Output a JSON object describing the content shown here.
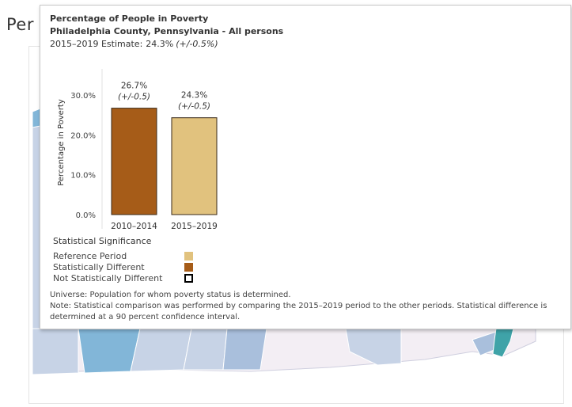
{
  "page": {
    "title": "Per"
  },
  "tooltip": {
    "title": "Percentage of People in Poverty",
    "subtitle": "Philadelphia County, Pennsylvania - All persons",
    "estimate_label": "2015–2019 Estimate:",
    "estimate_value": "24.3%",
    "estimate_moe": "(+/-0.5%)"
  },
  "chart_data": {
    "type": "bar",
    "title": "",
    "ylabel": "Percentage in Poverty",
    "xlabel": "",
    "categories": [
      "2010–2014",
      "2015–2019"
    ],
    "values": [
      26.7,
      24.3
    ],
    "value_labels": [
      "26.7%",
      "24.3%"
    ],
    "moe_labels": [
      "(+/-0.5)",
      "(+/-0.5)"
    ],
    "colors": [
      "#a65c18",
      "#e1c27e"
    ],
    "ylim": [
      0,
      30.0
    ],
    "yticks": [
      0,
      10,
      20,
      30
    ],
    "ytick_labels": [
      "0.0%",
      "10.0%",
      "20.0%",
      "30.0%"
    ],
    "grid": false
  },
  "legend": {
    "title": "Statistical Significance",
    "items": [
      {
        "label": "Reference Period",
        "color": "#e1c27e",
        "style": "filled"
      },
      {
        "label": "Statistically Different",
        "color": "#a65c18",
        "style": "filled"
      },
      {
        "label": "Not Statistically Different",
        "color": "#000000",
        "style": "outline"
      }
    ]
  },
  "notes": {
    "universe": "Universe: Population for whom poverty status is determined.",
    "note_line1": "Note: Statistical comparison was performed by comparing the 2015–2019 period to the other periods. Statistical difference is",
    "note_line2": "determined at a 90 percent confidence interval."
  },
  "map": {
    "colors": {
      "light": "#c7d3e6",
      "mid": "#a9bfdc",
      "dark": "#82b6d8",
      "teal": "#3fa3a8",
      "pale": "#f3eef4"
    }
  }
}
